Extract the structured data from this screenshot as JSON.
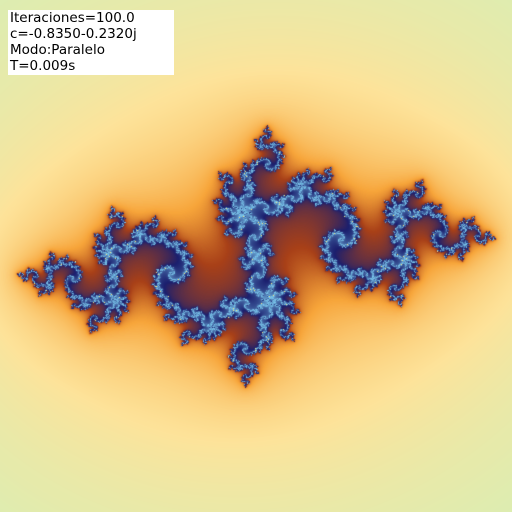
{
  "overlay": {
    "iterations_text": "Iteraciones=100.0",
    "c_text": "c=-0.8350-0.2320j",
    "mode_text": "Modo:Paralelo",
    "time_text": "T=0.009s"
  },
  "fractal": {
    "type": "julia",
    "c_real": -0.835,
    "c_imag": -0.232,
    "max_iterations": 100,
    "palette": {
      "background_far": "#86e8ee",
      "background_near": "#c8f3c0",
      "warm_outer": "#fde39a",
      "warm_inner": "#f7a53a",
      "edge": "#a84018",
      "boundary_dark": "#1b1f6e",
      "boundary_light": "#7cc9ee",
      "interior": "#fbe77d"
    }
  }
}
